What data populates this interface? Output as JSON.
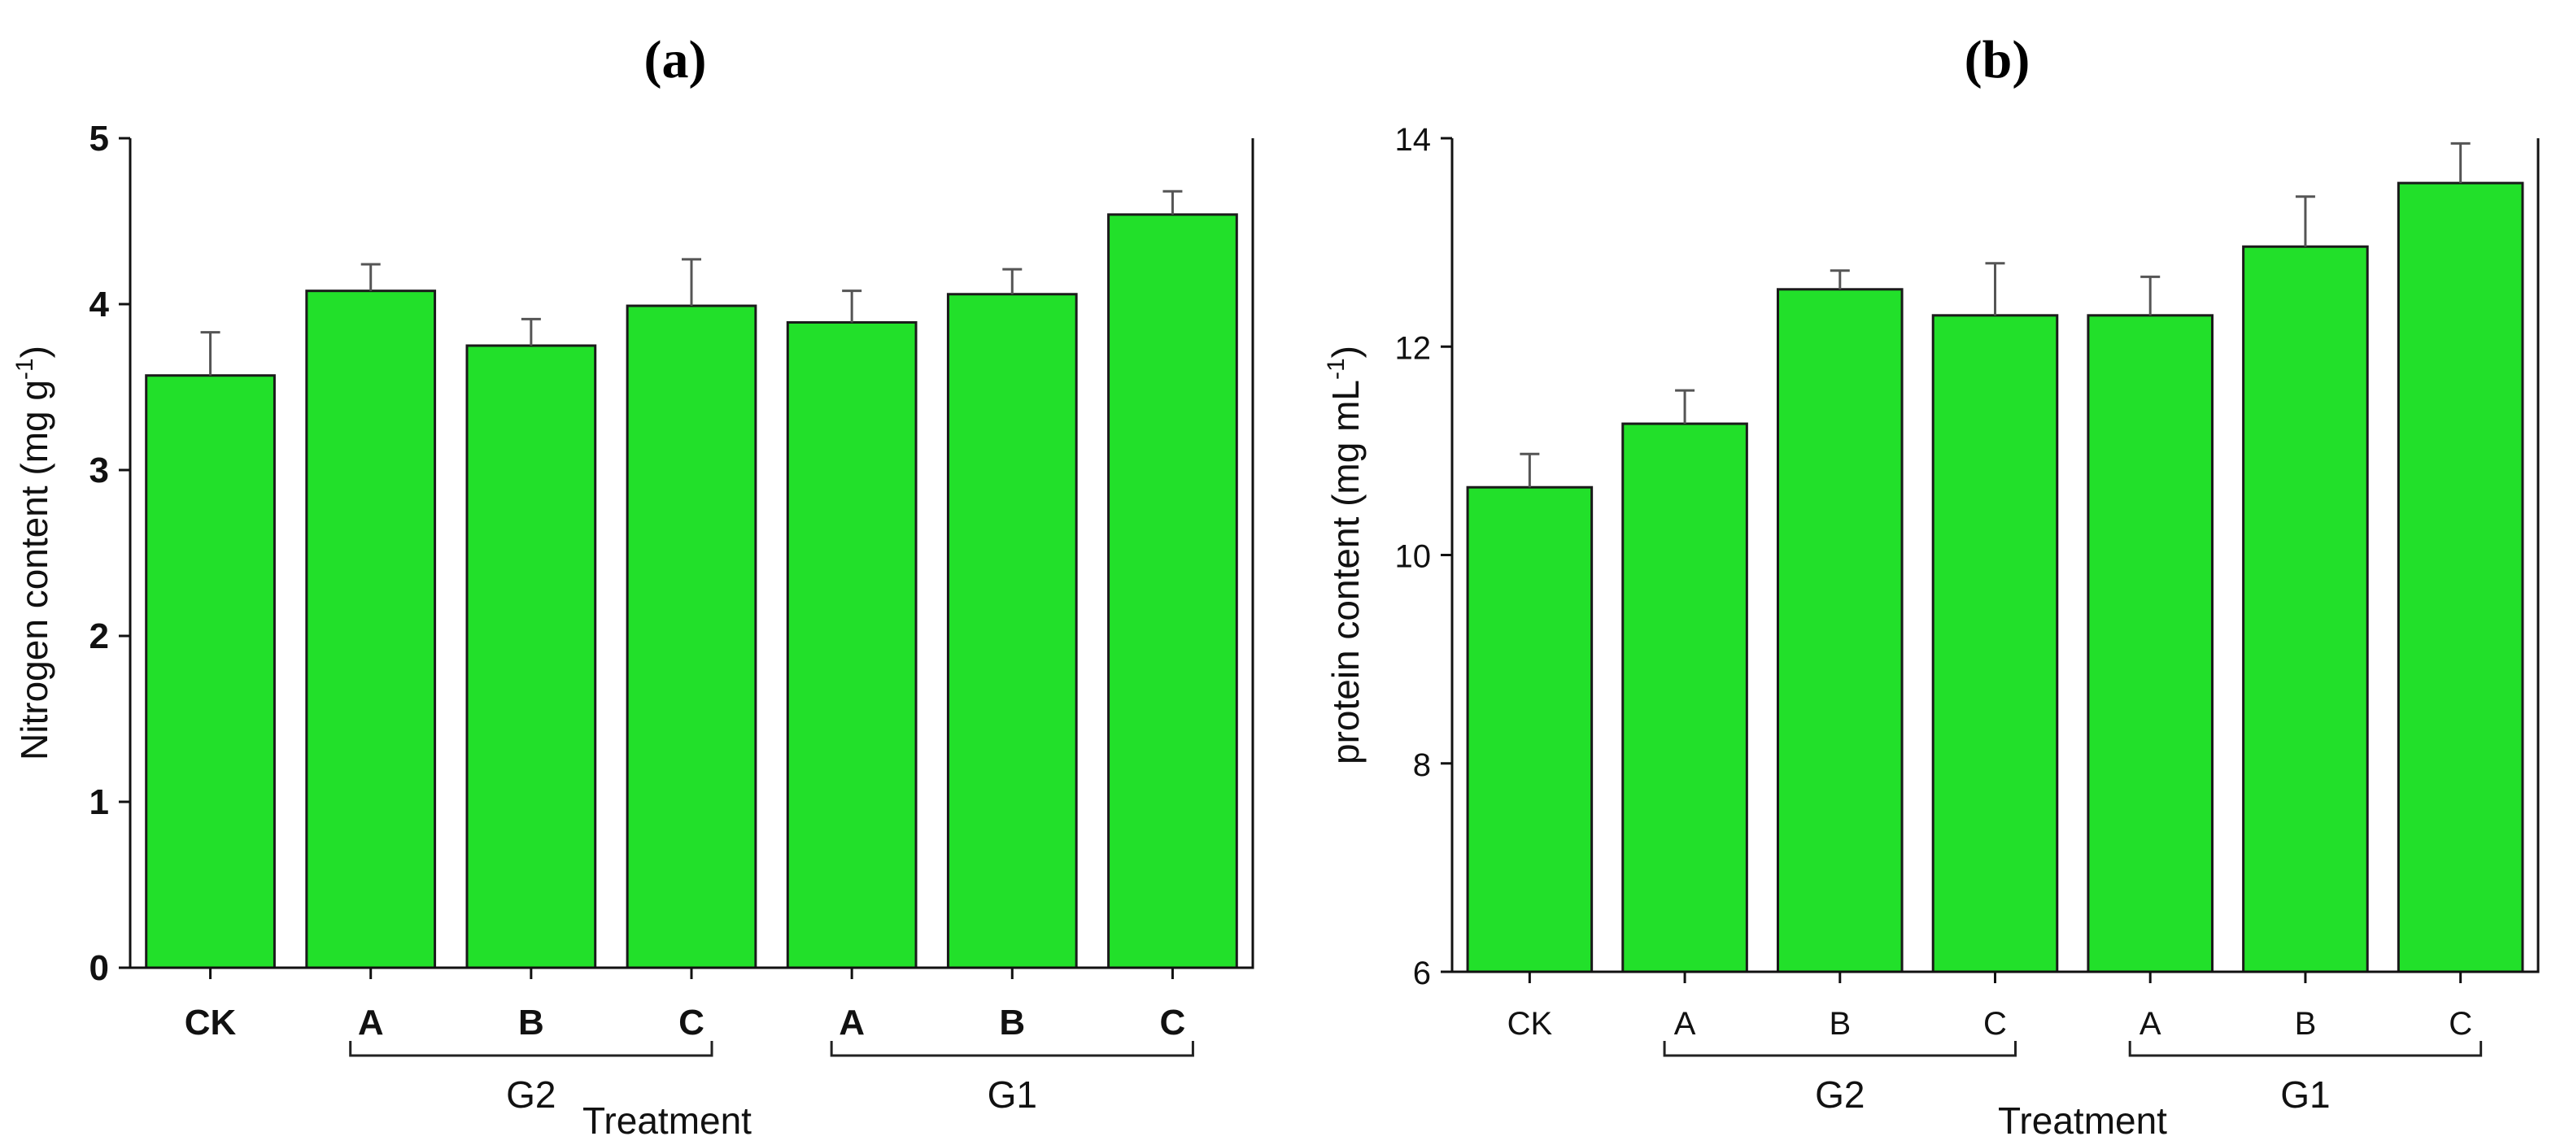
{
  "chart_data": [
    {
      "type": "bar",
      "title": "(a)",
      "xlabel": "Treatment",
      "ylabel": "Nitrogen content (mg g",
      "ylabel_sup": "-1",
      "ylabel_end": ")",
      "ylim": [
        0,
        5
      ],
      "yticks": [
        "0",
        "1",
        "2",
        "3",
        "4",
        "5"
      ],
      "categories": [
        "CK",
        "A",
        "B",
        "C",
        "A",
        "B",
        "C"
      ],
      "values": [
        3.57,
        4.08,
        3.75,
        3.99,
        3.89,
        4.06,
        4.54
      ],
      "errors": [
        0.26,
        0.16,
        0.16,
        0.28,
        0.19,
        0.15,
        0.14
      ],
      "groups": [
        {
          "label": "G2",
          "from": 1,
          "to": 3
        },
        {
          "label": "G1",
          "from": 4,
          "to": 6
        }
      ],
      "bold_tick_labels": true,
      "bar_color": "#22e02a"
    },
    {
      "type": "bar",
      "title": "(b)",
      "xlabel": "Treatment",
      "ylabel": "protein content (mg mL",
      "ylabel_sup": "-1",
      "ylabel_end": ")",
      "ylim": [
        6,
        14
      ],
      "yticks": [
        "6",
        "8",
        "10",
        "12",
        "14"
      ],
      "categories": [
        "CK",
        "A",
        "B",
        "C",
        "A",
        "B",
        "C"
      ],
      "values": [
        10.65,
        11.26,
        12.55,
        12.3,
        12.3,
        12.96,
        13.57
      ],
      "errors": [
        0.32,
        0.32,
        0.18,
        0.5,
        0.37,
        0.48,
        0.38
      ],
      "groups": [
        {
          "label": "G2",
          "from": 1,
          "to": 3
        },
        {
          "label": "G1",
          "from": 4,
          "to": 6
        }
      ],
      "bold_tick_labels": false,
      "bar_color": "#22e02a"
    }
  ]
}
